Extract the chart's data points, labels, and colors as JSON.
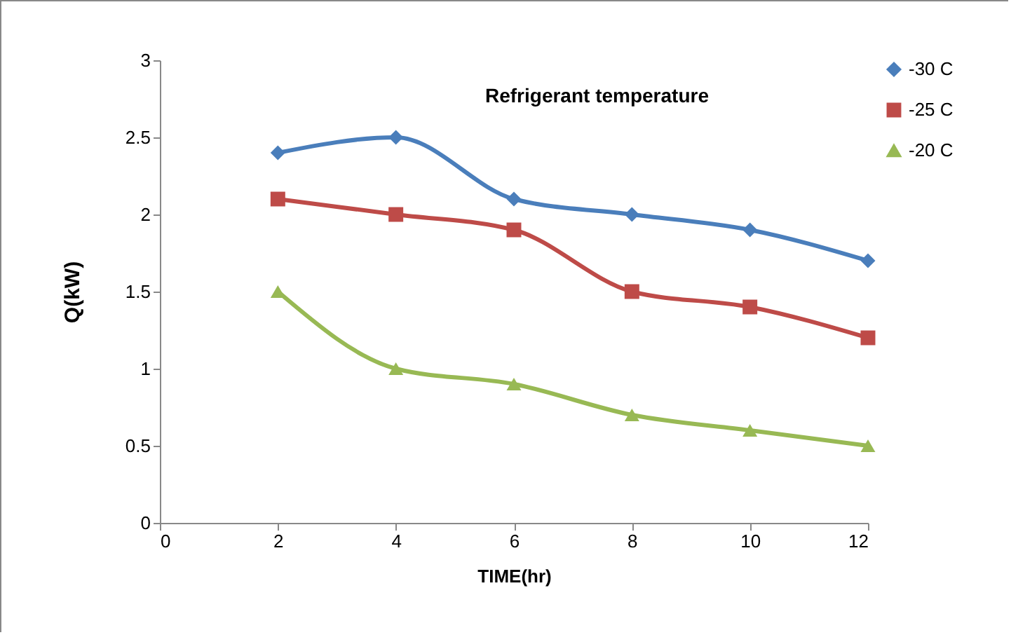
{
  "chart_data": {
    "type": "line",
    "xlabel": "TIME(hr)",
    "ylabel": "Q(kW)",
    "annotations": [
      "Refrigerant temperature"
    ],
    "x": [
      2,
      4,
      6,
      8,
      10,
      12
    ],
    "xlim": [
      0,
      12
    ],
    "xticks": [
      0,
      2,
      4,
      6,
      8,
      10,
      12
    ],
    "ylim": [
      0,
      3
    ],
    "yticks": [
      0,
      0.5,
      1,
      1.5,
      2,
      2.5,
      3
    ],
    "grid": false,
    "legend": "right",
    "line_style": "solid",
    "series": [
      {
        "name": "-30 C",
        "color": "#4a7ebb",
        "marker": "diamond",
        "values": [
          2.4,
          2.5,
          2.1,
          2.0,
          1.9,
          1.7
        ]
      },
      {
        "name": "-25 C",
        "color": "#be4b48",
        "marker": "square",
        "values": [
          2.1,
          2.0,
          1.9,
          1.5,
          1.4,
          1.2
        ]
      },
      {
        "name": "-20 C",
        "color": "#98b954",
        "marker": "triangle",
        "values": [
          1.5,
          1.0,
          0.9,
          0.7,
          0.6,
          0.5
        ]
      }
    ]
  }
}
